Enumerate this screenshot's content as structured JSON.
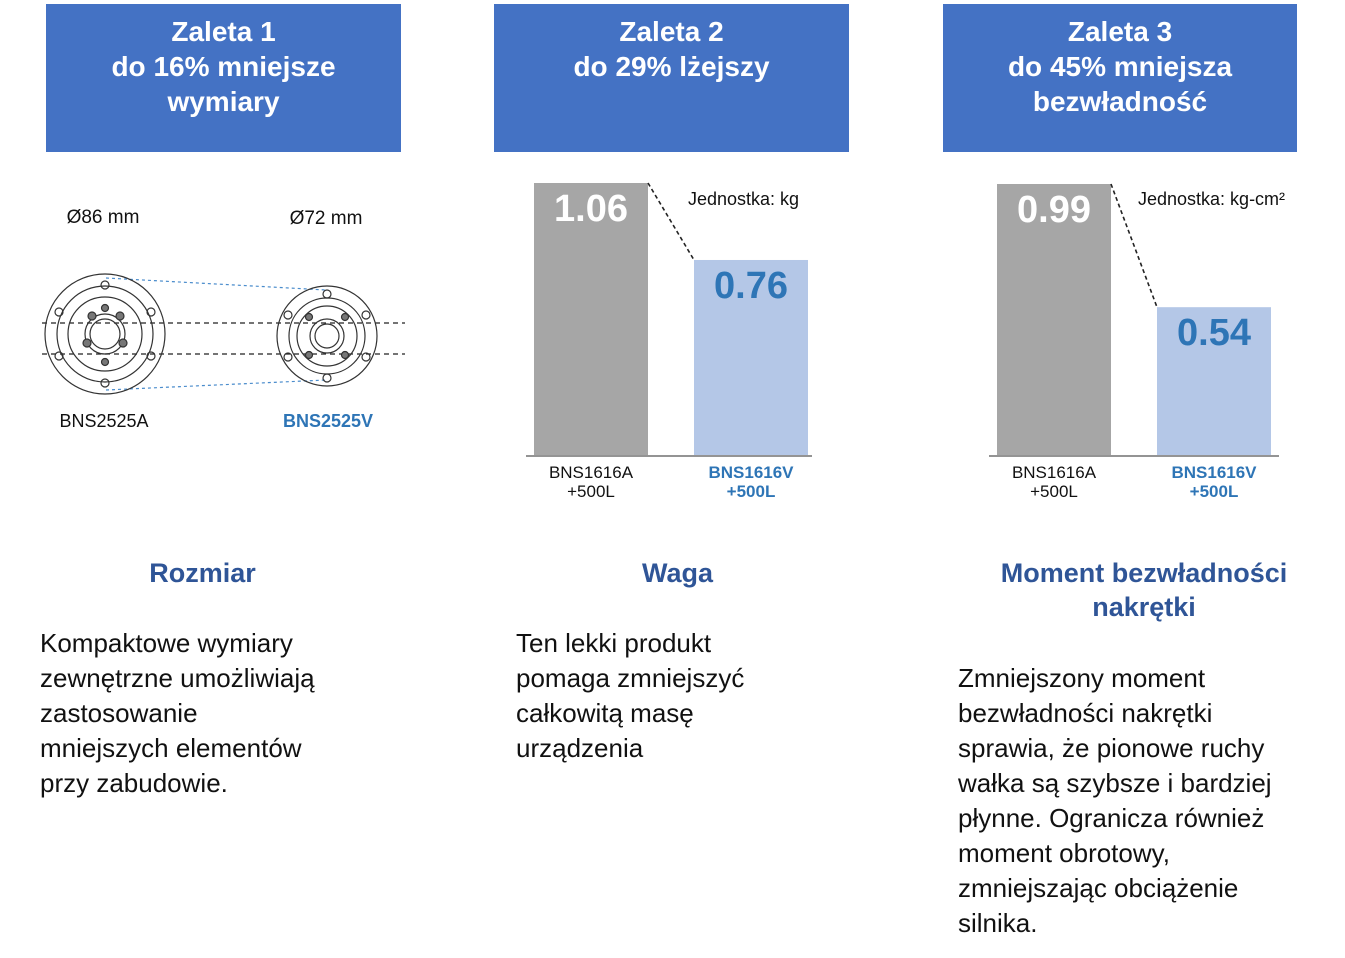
{
  "columns": [
    {
      "header_lines": [
        "Zaleta 1",
        "do 16% mniejsze",
        "wymiary"
      ],
      "title": "Rozmiar",
      "description_lines": [
        "Kompaktowe wymiary",
        "zewnętrzne umożliwiają",
        "zastosowanie",
        "mniejszych elementów",
        "przy zabudowie."
      ]
    },
    {
      "header_lines": [
        "Zaleta 2",
        "do 29% lżejszy"
      ],
      "title": "Waga",
      "description_lines": [
        "Ten lekki produkt",
        "pomaga zmniejszyć",
        "całkowitą masę",
        "urządzenia"
      ]
    },
    {
      "header_lines": [
        "Zaleta 3",
        "do 45% mniejsza",
        "bezwładność"
      ],
      "title_lines": [
        "Moment bezwładności",
        "nakrętki"
      ],
      "description_lines": [
        "Zmniejszony moment",
        "bezwładności nakrętki",
        "sprawia, że pionowe ruchy",
        "wałka są szybsze i bardziej",
        "płynne. Ogranicza również",
        "moment obrotowy,",
        "zmniejszając obciążenie",
        "silnika."
      ]
    }
  ],
  "diagram": {
    "left": {
      "diameter_label": "Ø86 mm",
      "model": "BNS2525A",
      "diameter_mm": 86
    },
    "right": {
      "diameter_label": "Ø72 mm",
      "model": "BNS2525V",
      "diameter_mm": 72
    }
  },
  "chart_data": [
    {
      "type": "bar",
      "unit_label": "Jednostka: kg",
      "categories": [
        [
          "BNS1616A",
          "+500L"
        ],
        [
          "BNS1616V",
          "+500L"
        ]
      ],
      "values": [
        1.06,
        0.76
      ],
      "value_labels": [
        "1.06",
        "0.76"
      ],
      "ylim": [
        0,
        1.06
      ],
      "colors": [
        "#a6a6a6",
        "#b4c7e7"
      ],
      "label_colors": [
        "#ffffff",
        "#2e75b6"
      ]
    },
    {
      "type": "bar",
      "unit_label": "Jednostka: kg-cm²",
      "categories": [
        [
          "BNS1616A",
          "+500L"
        ],
        [
          "BNS1616V",
          "+500L"
        ]
      ],
      "values": [
        0.99,
        0.54
      ],
      "value_labels": [
        "0.99",
        "0.54"
      ],
      "ylim": [
        0,
        0.99
      ],
      "colors": [
        "#a6a6a6",
        "#b4c7e7"
      ],
      "label_colors": [
        "#ffffff",
        "#2e75b6"
      ]
    }
  ],
  "colors": {
    "header_bg": "#4472c4",
    "title": "#2f5597",
    "accent_blue": "#2e75b6"
  }
}
